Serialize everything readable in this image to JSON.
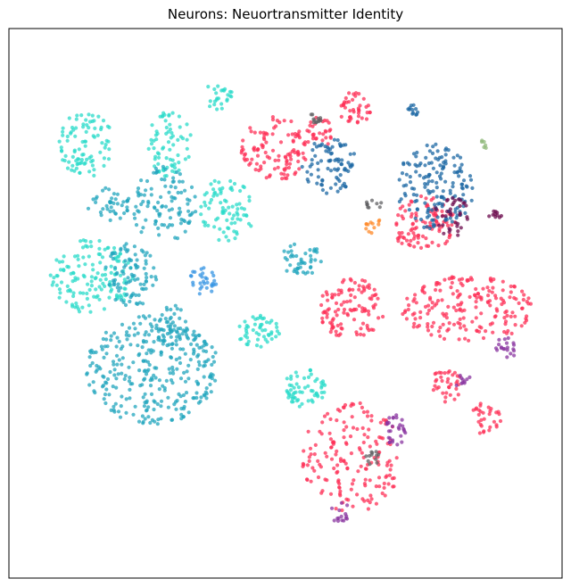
{
  "chart_data": {
    "type": "scatter",
    "title": "Neurons: Neuortransmitter Identity",
    "xlabel": "",
    "ylabel": "",
    "xlim": [
      0,
      100
    ],
    "ylim": [
      0,
      100
    ],
    "axis_ticks": false,
    "grid": false,
    "legend": "none",
    "point_opacity": 0.75,
    "colors": {
      "cyan": "#2adbca",
      "teal": "#22a5bd",
      "red": "#fe2f56",
      "blue": "#1b67a3",
      "purple": "#8a35a0",
      "grey": "#626264",
      "orange": "#ff8a2a",
      "maroon": "#6b0a4c",
      "skyblue": "#3594e3",
      "sage": "#8fb87a"
    },
    "clusters": [
      {
        "color": "cyan",
        "cx": 14,
        "cy": 79,
        "rx": 5,
        "ry": 6,
        "n": 90
      },
      {
        "color": "cyan",
        "cx": 29,
        "cy": 79,
        "rx": 4,
        "ry": 6,
        "n": 70
      },
      {
        "color": "cyan",
        "cx": 38,
        "cy": 88,
        "rx": 2.5,
        "ry": 3,
        "n": 25
      },
      {
        "color": "cyan",
        "cx": 39.5,
        "cy": 67,
        "rx": 5,
        "ry": 6,
        "n": 80
      },
      {
        "color": "cyan",
        "cx": 15,
        "cy": 55,
        "rx": 7.5,
        "ry": 7,
        "n": 140
      },
      {
        "color": "cyan",
        "cx": 45,
        "cy": 45,
        "rx": 4,
        "ry": 3,
        "n": 50
      },
      {
        "color": "cyan",
        "cx": 53.5,
        "cy": 34.5,
        "rx": 4,
        "ry": 3.5,
        "n": 60
      },
      {
        "color": "teal",
        "cx": 28,
        "cy": 68,
        "rx": 6,
        "ry": 7,
        "n": 100
      },
      {
        "color": "teal",
        "cx": 18,
        "cy": 68,
        "rx": 4,
        "ry": 3,
        "n": 40
      },
      {
        "color": "teal",
        "cx": 53,
        "cy": 58,
        "rx": 4,
        "ry": 3,
        "n": 45
      },
      {
        "color": "teal",
        "cx": 22,
        "cy": 55,
        "rx": 5,
        "ry": 6,
        "n": 90
      },
      {
        "color": "teal",
        "cx": 26,
        "cy": 38,
        "rx": 12,
        "ry": 10,
        "n": 320
      },
      {
        "color": "teal",
        "cx": 29,
        "cy": 46,
        "rx": 3,
        "ry": 4,
        "n": 40
      },
      {
        "color": "skyblue",
        "cx": 35,
        "cy": 54,
        "rx": 2.5,
        "ry": 2.5,
        "n": 30
      },
      {
        "color": "red",
        "cx": 48,
        "cy": 78,
        "rx": 6,
        "ry": 6,
        "n": 110
      },
      {
        "color": "red",
        "cx": 62.5,
        "cy": 85.5,
        "rx": 3,
        "ry": 3,
        "n": 40
      },
      {
        "color": "red",
        "cx": 56,
        "cy": 81,
        "rx": 2.5,
        "ry": 3,
        "n": 30
      },
      {
        "color": "red",
        "cx": 62,
        "cy": 49,
        "rx": 6,
        "ry": 5.5,
        "n": 110
      },
      {
        "color": "red",
        "cx": 83,
        "cy": 49,
        "rx": 12,
        "ry": 6,
        "n": 190
      },
      {
        "color": "red",
        "cx": 62,
        "cy": 22,
        "rx": 9,
        "ry": 10,
        "n": 170
      },
      {
        "color": "red",
        "cx": 79,
        "cy": 35,
        "rx": 3,
        "ry": 3,
        "n": 35
      },
      {
        "color": "red",
        "cx": 86,
        "cy": 29,
        "rx": 3,
        "ry": 3,
        "n": 30
      },
      {
        "color": "red",
        "cx": 75,
        "cy": 64.5,
        "rx": 6,
        "ry": 5,
        "n": 100
      },
      {
        "color": "blue",
        "cx": 58,
        "cy": 75,
        "rx": 5,
        "ry": 5,
        "n": 80
      },
      {
        "color": "blue",
        "cx": 77,
        "cy": 71,
        "rx": 7,
        "ry": 8,
        "n": 160
      },
      {
        "color": "blue",
        "cx": 73,
        "cy": 85,
        "rx": 1.2,
        "ry": 1.2,
        "n": 12
      },
      {
        "color": "purple",
        "cx": 70,
        "cy": 27,
        "rx": 2,
        "ry": 3,
        "n": 30
      },
      {
        "color": "purple",
        "cx": 90,
        "cy": 42,
        "rx": 2,
        "ry": 2,
        "n": 20
      },
      {
        "color": "purple",
        "cx": 60,
        "cy": 12,
        "rx": 2,
        "ry": 2,
        "n": 15
      },
      {
        "color": "purple",
        "cx": 82,
        "cy": 36,
        "rx": 1.5,
        "ry": 1.5,
        "n": 10
      },
      {
        "color": "grey",
        "cx": 55,
        "cy": 83.5,
        "rx": 1.5,
        "ry": 1,
        "n": 12
      },
      {
        "color": "grey",
        "cx": 65.5,
        "cy": 22,
        "rx": 1.5,
        "ry": 1.5,
        "n": 12
      },
      {
        "color": "grey",
        "cx": 66,
        "cy": 68,
        "rx": 1.5,
        "ry": 1,
        "n": 10
      },
      {
        "color": "orange",
        "cx": 66,
        "cy": 64,
        "rx": 1.5,
        "ry": 1.5,
        "n": 12
      },
      {
        "color": "maroon",
        "cx": 80,
        "cy": 66,
        "rx": 3,
        "ry": 4,
        "n": 35
      },
      {
        "color": "maroon",
        "cx": 88,
        "cy": 66,
        "rx": 1.5,
        "ry": 1,
        "n": 10
      },
      {
        "color": "sage",
        "cx": 86,
        "cy": 79,
        "rx": 0.8,
        "ry": 0.8,
        "n": 6
      }
    ]
  }
}
